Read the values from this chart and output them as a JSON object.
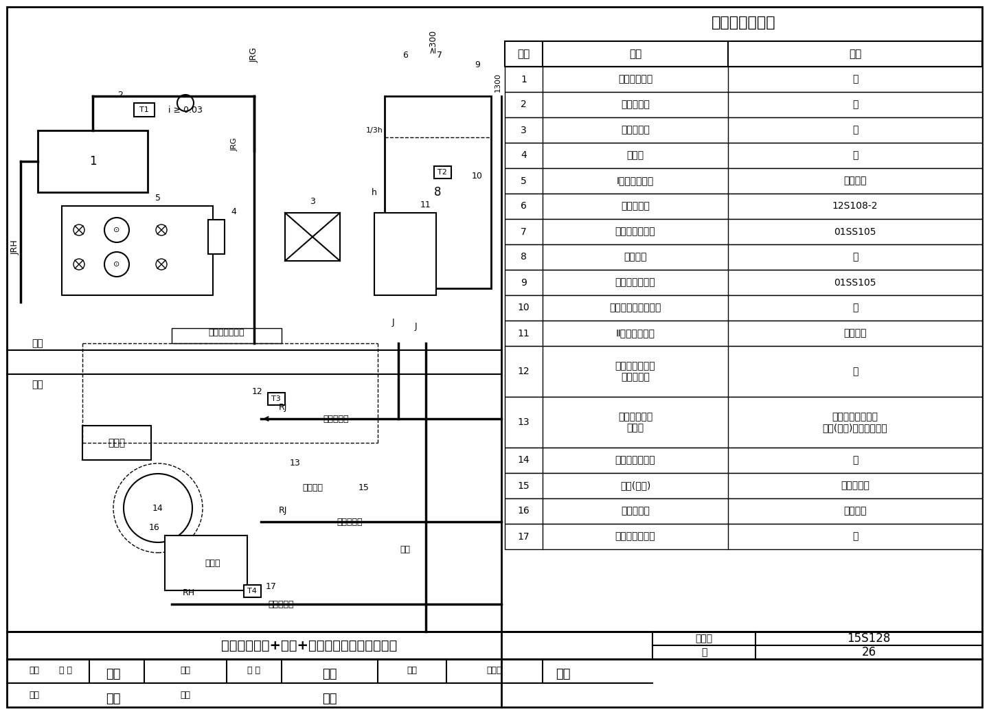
{
  "title": "主要设备材料表",
  "table_header": [
    "序号",
    "名称",
    "备注"
  ],
  "table_rows": [
    [
      "1",
      "太阳能集热器",
      "－"
    ],
    [
      "2",
      "温度传感器",
      "－"
    ],
    [
      "3",
      "板式换热器",
      "－"
    ],
    [
      "4",
      "膨胀罐",
      "－"
    ],
    [
      "5",
      "Ⅰ号集热循环泵",
      "－用－备"
    ],
    [
      "6",
      "真空破坏器",
      "12S108-2"
    ],
    [
      "7",
      "液压水位控制阀",
      "01SS105"
    ],
    [
      "8",
      "集热水箱",
      "－"
    ],
    [
      "9",
      "水箱液位传感器",
      "01SS105"
    ],
    [
      "10",
      "集热水箱温度传感器",
      "－"
    ],
    [
      "11",
      "Ⅱ号集热循环泵",
      "－用－备"
    ],
    [
      "12",
      "容积式水加热器\n温度传感器",
      "－"
    ],
    [
      "13",
      "自力式温控阀\n电动阀",
      "全日自动控制系统\n定时(全日)自动控制系统"
    ],
    [
      "14",
      "容积式水加热器",
      "－"
    ],
    [
      "15",
      "闸阀(常闭)",
      "事故检修阀"
    ],
    [
      "16",
      "回水循环泵",
      "－用－备"
    ],
    [
      "17",
      "回水温度传感器",
      "－"
    ]
  ],
  "bottom_title": "强制循环板换+水箱+水罐间接加热系统示意图",
  "atlas_no_label": "图集号",
  "atlas_no": "15S128",
  "page_label": "页",
  "page_no": "26",
  "footer_review": "审核 张 磊",
  "footer_check": "校对 张 哲",
  "footer_design": "设计 王岩松",
  "bg_color": "#ffffff",
  "border_color": "#000000",
  "line_color": "#000000",
  "diagram_labels": {
    "JRH": "JRH",
    "JRG": "JRG",
    "J": "J",
    "RJ": "RJ",
    "RH": "RH",
    "roof_label": "屋顶",
    "indoor_label": "室内",
    "fill_label": "接工质灌注装置",
    "hot_supply": "热水供水管",
    "cold_supply": "冷水供水管",
    "hot_return": "热水回水管",
    "aux_heat": "辅助热源",
    "sewage": "排污管",
    "drain": "泄水",
    "controller": "控制器",
    "slope": "i ≥ 0.03",
    "height_300": "≥300",
    "height_1300": "1300"
  }
}
